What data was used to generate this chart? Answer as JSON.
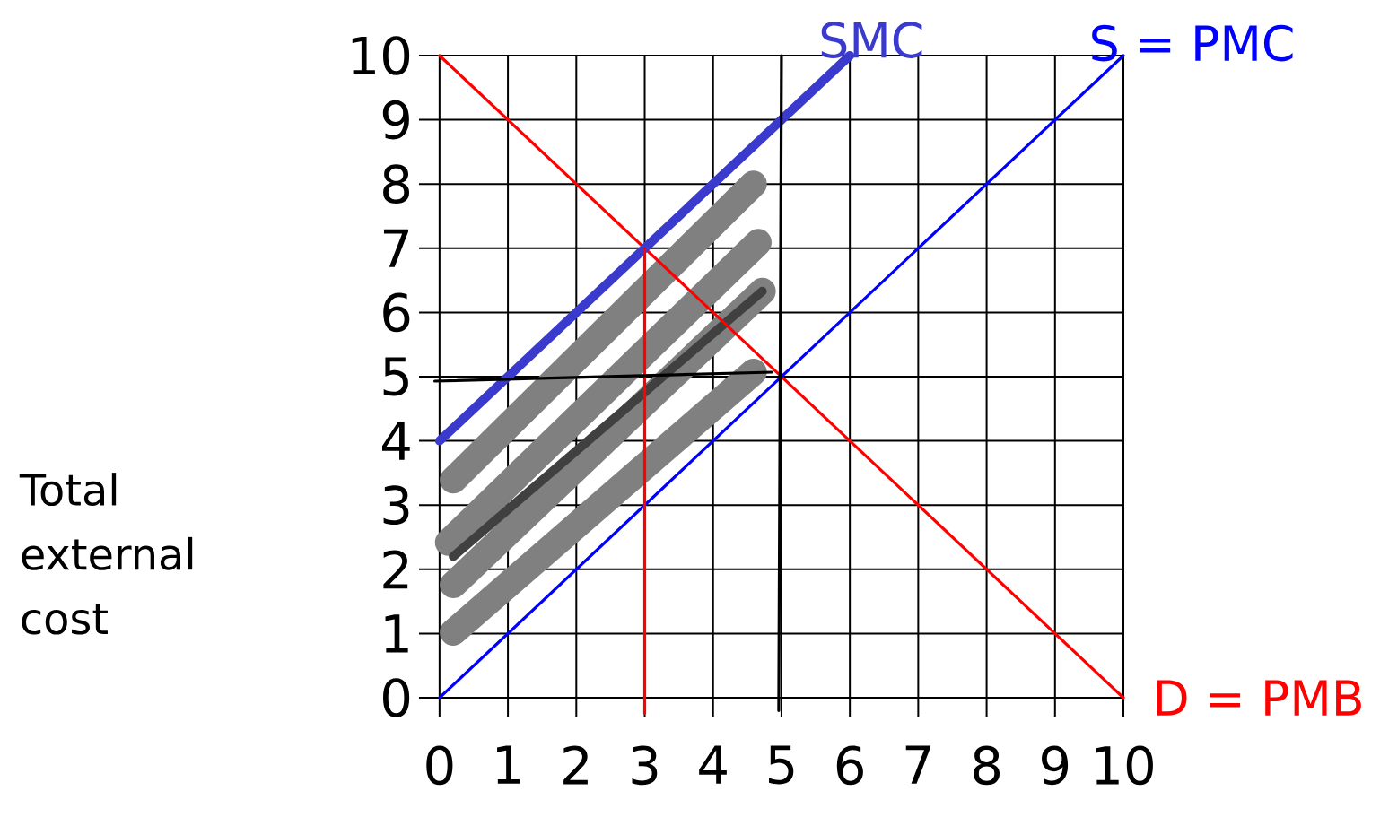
{
  "chart_data": {
    "type": "line",
    "ylabel": "Total external cost",
    "xlim": [
      -0.3,
      10
    ],
    "ylim": [
      -0.3,
      10
    ],
    "xticks": [
      0,
      1,
      2,
      3,
      4,
      5,
      6,
      7,
      8,
      9,
      10
    ],
    "yticks": [
      0,
      1,
      2,
      3,
      4,
      5,
      6,
      7,
      8,
      9,
      10
    ],
    "grid": true,
    "marker": "none",
    "series": [
      {
        "color": "#808080",
        "x": [
          0.2,
          4.59
        ],
        "values": [
          3.39,
          8.0
        ]
      },
      {
        "color": "#808080",
        "x": [
          0.13,
          4.66
        ],
        "values": [
          2.42,
          7.09
        ]
      },
      {
        "color": "#808080",
        "x": [
          0.2,
          4.72
        ],
        "values": [
          1.76,
          6.33
        ]
      },
      {
        "color": "#808080",
        "x": [
          0.2,
          4.59
        ],
        "values": [
          1.02,
          5.07
        ]
      },
      {
        "color": "#404040",
        "x": [
          0.2,
          4.72
        ],
        "values": [
          2.2,
          6.33
        ]
      },
      {
        "name": "D = PMB",
        "color": "#ff0000",
        "x": [
          0,
          10
        ],
        "values": [
          10,
          0
        ]
      },
      {
        "name": "S = PMC",
        "color": "#0000ff",
        "x": [
          0,
          10
        ],
        "values": [
          0,
          10
        ]
      },
      {
        "name": "SMC",
        "color": "#3a3acc",
        "x": [
          0,
          6
        ],
        "values": [
          4,
          10
        ]
      },
      {
        "color": "#ff0000",
        "x": [
          3,
          3
        ],
        "values": [
          7,
          -0.24
        ]
      },
      {
        "color": "#000000",
        "x": [
          5,
          4.96
        ],
        "values": [
          10,
          -0.2
        ]
      },
      {
        "color": "#000000",
        "x": [
          -0.07,
          4.86
        ],
        "values": [
          4.93,
          5.07
        ]
      }
    ]
  }
}
